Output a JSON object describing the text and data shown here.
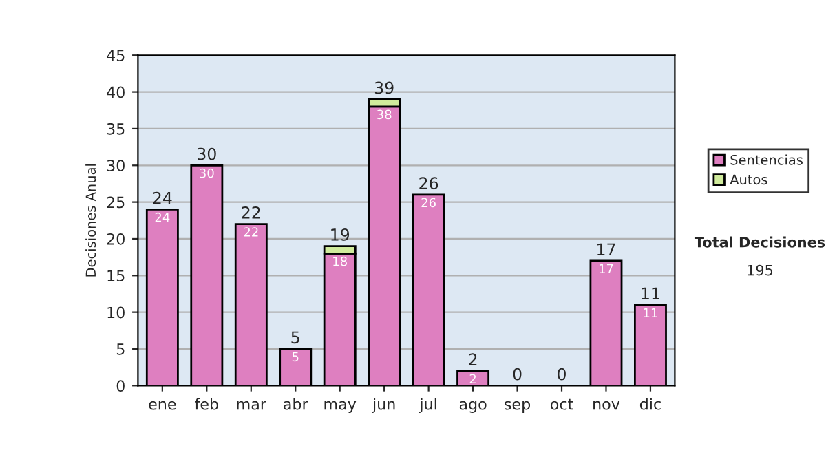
{
  "chart_data": {
    "type": "bar",
    "stacked": true,
    "ylabel": "Decisiones Anual",
    "categories": [
      "ene",
      "feb",
      "mar",
      "abr",
      "may",
      "jun",
      "jul",
      "ago",
      "sep",
      "oct",
      "nov",
      "dic"
    ],
    "series": [
      {
        "name": "Sentencias",
        "color": "#de7fc0",
        "values": [
          24,
          30,
          22,
          5,
          18,
          38,
          26,
          2,
          0,
          0,
          17,
          11
        ],
        "value_labels": [
          "24",
          "30",
          "22",
          "5",
          "18",
          "38",
          "26",
          "2",
          null,
          null,
          "17",
          "11"
        ]
      },
      {
        "name": "Autos",
        "color": "#d0eb9c",
        "values": [
          0,
          0,
          0,
          0,
          1,
          1,
          0,
          0,
          0,
          0,
          0,
          0
        ]
      }
    ],
    "totals": [
      "24",
      "30",
      "22",
      "5",
      "19",
      "39",
      "26",
      "2",
      "0",
      "0",
      "17",
      "11"
    ],
    "ylim": [
      0,
      45
    ],
    "yticks": [
      0,
      5,
      10,
      15,
      20,
      25,
      30,
      35,
      40,
      45
    ],
    "grid": "y",
    "legend": "right",
    "annotations": [
      "Total Decisiones",
      "195"
    ]
  }
}
